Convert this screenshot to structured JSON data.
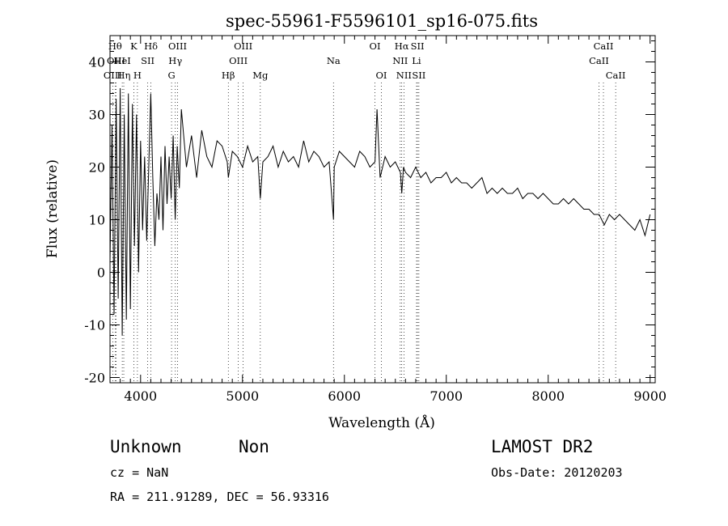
{
  "chart_data": {
    "type": "line",
    "title": "spec-55961-F5596101_sp16-075.fits",
    "xlabel": "Wavelength (Å)",
    "ylabel": "Flux (relative)",
    "xlim": [
      3700,
      9050
    ],
    "ylim": [
      -21,
      45
    ],
    "xticks": [
      4000,
      5000,
      6000,
      7000,
      8000,
      9000
    ],
    "yticks": [
      -20,
      -10,
      0,
      10,
      20,
      30,
      40
    ],
    "grid": false,
    "series": [
      {
        "color": "#000000",
        "x": [
          3700,
          3720,
          3740,
          3760,
          3780,
          3800,
          3820,
          3840,
          3860,
          3880,
          3900,
          3920,
          3940,
          3960,
          3980,
          4000,
          4020,
          4040,
          4060,
          4080,
          4100,
          4120,
          4140,
          4160,
          4180,
          4200,
          4220,
          4240,
          4260,
          4280,
          4300,
          4320,
          4340,
          4360,
          4380,
          4400,
          4450,
          4500,
          4550,
          4600,
          4650,
          4700,
          4750,
          4800,
          4850,
          4861,
          4900,
          4950,
          5000,
          5050,
          5100,
          5150,
          5175,
          5200,
          5250,
          5300,
          5350,
          5400,
          5450,
          5500,
          5550,
          5600,
          5650,
          5700,
          5750,
          5800,
          5850,
          5893,
          5900,
          5950,
          6000,
          6050,
          6100,
          6150,
          6200,
          6250,
          6300,
          6320,
          6350,
          6400,
          6450,
          6500,
          6550,
          6563,
          6580,
          6600,
          6650,
          6700,
          6750,
          6800,
          6850,
          6900,
          6950,
          7000,
          7050,
          7100,
          7150,
          7200,
          7250,
          7300,
          7350,
          7400,
          7450,
          7500,
          7550,
          7600,
          7650,
          7700,
          7750,
          7800,
          7850,
          7900,
          7950,
          8000,
          8050,
          8100,
          8150,
          8200,
          8250,
          8300,
          8350,
          8400,
          8450,
          8500,
          8550,
          8600,
          8650,
          8700,
          8750,
          8800,
          8850,
          8900,
          8950,
          9000
        ],
        "y": [
          2,
          28,
          -8,
          33,
          -5,
          35,
          -12,
          30,
          -9,
          34,
          -7,
          32,
          5,
          30,
          0,
          25,
          8,
          22,
          6,
          20,
          34,
          18,
          5,
          15,
          10,
          22,
          8,
          24,
          13,
          22,
          14,
          26,
          10,
          24,
          16,
          31,
          20,
          26,
          18,
          27,
          22,
          20,
          25,
          24,
          21,
          18,
          23,
          22,
          20,
          24,
          21,
          22,
          14,
          21,
          22,
          24,
          20,
          23,
          21,
          22,
          20,
          25,
          21,
          23,
          22,
          20,
          21,
          10,
          20,
          23,
          22,
          21,
          20,
          23,
          22,
          20,
          21,
          31,
          18,
          22,
          20,
          21,
          19,
          15,
          20,
          19,
          18,
          20,
          18,
          19,
          17,
          18,
          18,
          19,
          17,
          18,
          17,
          17,
          16,
          17,
          18,
          15,
          16,
          15,
          16,
          15,
          15,
          16,
          14,
          15,
          15,
          14,
          15,
          14,
          13,
          13,
          14,
          13,
          14,
          13,
          12,
          12,
          11,
          11,
          9,
          11,
          10,
          11,
          10,
          9,
          8,
          10,
          7,
          11
        ]
      }
    ],
    "lines": [
      {
        "label": "OIII",
        "x": 3727,
        "row": 2
      },
      {
        "label": "Hθ",
        "x": 3750,
        "row": 0
      },
      {
        "label": "OIII",
        "x": 3760,
        "row": 1
      },
      {
        "label": "Hη",
        "x": 3835,
        "row": 2
      },
      {
        "label": "HeI",
        "x": 3820,
        "row": 1
      },
      {
        "label": "K",
        "x": 3934,
        "row": 0
      },
      {
        "label": "H",
        "x": 3969,
        "row": 2
      },
      {
        "label": "SII",
        "x": 4070,
        "row": 1
      },
      {
        "label": "Hδ",
        "x": 4102,
        "row": 0
      },
      {
        "label": "OIII",
        "x": 4363,
        "row": 0
      },
      {
        "label": "Hγ",
        "x": 4341,
        "row": 1
      },
      {
        "label": "G",
        "x": 4304,
        "row": 2
      },
      {
        "label": "Hβ",
        "x": 4861,
        "row": 2
      },
      {
        "label": "OIII",
        "x": 5007,
        "row": 0
      },
      {
        "label": "OIII",
        "x": 4959,
        "row": 1
      },
      {
        "label": "Mg",
        "x": 5175,
        "row": 2
      },
      {
        "label": "Na",
        "x": 5893,
        "row": 1
      },
      {
        "label": "OI",
        "x": 6300,
        "row": 0
      },
      {
        "label": "OI",
        "x": 6363,
        "row": 2
      },
      {
        "label": "Hα",
        "x": 6563,
        "row": 0
      },
      {
        "label": "NII",
        "x": 6548,
        "row": 1
      },
      {
        "label": "NII",
        "x": 6584,
        "row": 2
      },
      {
        "label": "SII",
        "x": 6717,
        "row": 0
      },
      {
        "label": "SII",
        "x": 6731,
        "row": 2
      },
      {
        "label": "Li",
        "x": 6708,
        "row": 1
      },
      {
        "label": "CaII",
        "x": 8542,
        "row": 0
      },
      {
        "label": "CaII",
        "x": 8498,
        "row": 1
      },
      {
        "label": "CaII",
        "x": 8662,
        "row": 2
      }
    ]
  },
  "info": {
    "class": "Unknown",
    "subclass": "Non",
    "survey": "LAMOST DR2",
    "cz": "cz = NaN",
    "obs_date": "Obs-Date: 20120203",
    "coords": "RA = 211.91289, DEC =  56.93316"
  }
}
